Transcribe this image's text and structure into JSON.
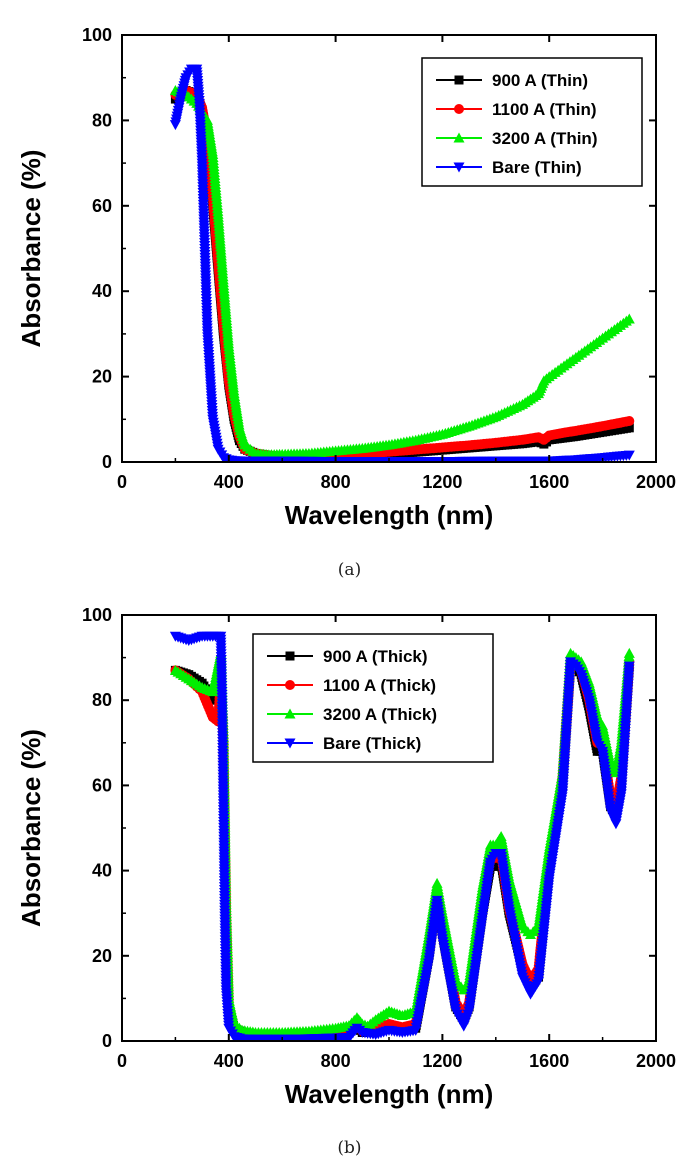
{
  "chart_data": [
    {
      "type": "line",
      "panel_label": "(a)",
      "xlabel": "Wavelength (nm)",
      "ylabel": "Absorbance (%)",
      "xlim": [
        0,
        2000
      ],
      "ylim": [
        0,
        100
      ],
      "xticks": [
        0,
        400,
        800,
        1200,
        1600,
        2000
      ],
      "yticks": [
        0,
        20,
        40,
        60,
        80,
        100
      ],
      "grid": false,
      "legend_position": "top-right",
      "series": [
        {
          "name": "900 A   (Thin)",
          "color": "#000000",
          "marker": "square",
          "x": [
            200,
            240,
            280,
            300,
            320,
            340,
            360,
            380,
            400,
            420,
            440,
            460,
            500,
            550,
            600,
            700,
            800,
            900,
            1000,
            1100,
            1200,
            1300,
            1400,
            1500,
            1560,
            1580,
            1600,
            1650,
            1700,
            1800,
            1900
          ],
          "y": [
            85,
            87,
            86,
            82,
            75,
            60,
            45,
            30,
            18,
            10,
            5,
            3,
            2,
            1.5,
            1.3,
            1.2,
            1.3,
            1.6,
            1.9,
            2.3,
            2.8,
            3.3,
            3.8,
            4.3,
            4.8,
            4.2,
            5.2,
            5.6,
            6.0,
            7.0,
            8.0
          ]
        },
        {
          "name": "1100 A (Thin)",
          "color": "#ff0000",
          "marker": "circle",
          "x": [
            200,
            240,
            280,
            300,
            320,
            340,
            360,
            380,
            400,
            420,
            440,
            460,
            500,
            550,
            600,
            700,
            800,
            900,
            1000,
            1100,
            1200,
            1300,
            1400,
            1500,
            1560,
            1580,
            1600,
            1650,
            1700,
            1800,
            1900
          ],
          "y": [
            86,
            87,
            86,
            83,
            76,
            62,
            47,
            32,
            19,
            11,
            6,
            3,
            2,
            1.5,
            1.3,
            1.3,
            1.5,
            1.9,
            2.4,
            2.9,
            3.4,
            3.9,
            4.5,
            5.2,
            5.8,
            5.2,
            6.2,
            6.8,
            7.3,
            8.4,
            9.6
          ]
        },
        {
          "name": "3200 A (Thin)",
          "color": "#00ee00",
          "marker": "triangle-up",
          "x": [
            200,
            240,
            280,
            300,
            320,
            340,
            360,
            380,
            400,
            420,
            440,
            460,
            500,
            550,
            600,
            700,
            800,
            900,
            1000,
            1100,
            1200,
            1300,
            1400,
            1500,
            1560,
            1580,
            1600,
            1700,
            1800,
            1900
          ],
          "y": [
            87,
            86,
            84,
            82,
            80,
            72,
            58,
            42,
            27,
            16,
            8,
            4,
            2,
            1.7,
            1.8,
            2,
            2.6,
            3.2,
            4.0,
            5.1,
            6.5,
            8.4,
            10.6,
            13.5,
            16.0,
            19,
            20,
            24.5,
            29,
            33.5
          ]
        },
        {
          "name": "Bare    (Thin)",
          "color": "#0000ff",
          "marker": "triangle-down",
          "x": [
            200,
            220,
            240,
            260,
            280,
            290,
            300,
            310,
            320,
            340,
            360,
            380,
            400,
            420,
            460,
            500,
            600,
            800,
            1000,
            1200,
            1400,
            1600,
            1700,
            1800,
            1900
          ],
          "y": [
            79,
            85,
            90,
            92,
            92,
            84,
            70,
            50,
            30,
            10,
            3,
            1,
            0.5,
            0.3,
            0.2,
            0.2,
            0.2,
            0.1,
            0.1,
            0.1,
            0.2,
            0.2,
            0.5,
            1.0,
            1.6
          ]
        }
      ]
    },
    {
      "type": "line",
      "panel_label": "(b)",
      "xlabel": "Wavelength (nm)",
      "ylabel": "Absorbance (%)",
      "xlim": [
        0,
        2000
      ],
      "ylim": [
        0,
        100
      ],
      "xticks": [
        0,
        400,
        800,
        1200,
        1600,
        2000
      ],
      "yticks": [
        0,
        20,
        40,
        60,
        80,
        100
      ],
      "grid": false,
      "legend_position": "top-center",
      "series": [
        {
          "name": "900 A   (Thick)",
          "color": "#000000",
          "marker": "square",
          "x": [
            200,
            250,
            300,
            340,
            360,
            370,
            380,
            390,
            400,
            420,
            450,
            500,
            600,
            700,
            800,
            850,
            880,
            900,
            950,
            1000,
            1050,
            1100,
            1150,
            1180,
            1200,
            1250,
            1280,
            1300,
            1350,
            1380,
            1400,
            1420,
            1450,
            1500,
            1530,
            1560,
            1600,
            1650,
            1680,
            1700,
            1720,
            1750,
            1780,
            1800,
            1830,
            1850,
            1870,
            1900
          ],
          "y": [
            87,
            86,
            84,
            80,
            85,
            88,
            70,
            30,
            8,
            3,
            2,
            1.5,
            1.5,
            1.8,
            2.2,
            2.5,
            3.5,
            2,
            2.5,
            3,
            2.5,
            3,
            20,
            34,
            25,
            8,
            5,
            8,
            30,
            41,
            41,
            42,
            30,
            17,
            13,
            15,
            40,
            60,
            88,
            88,
            86,
            78,
            68,
            68,
            55,
            53,
            60,
            88
          ]
        },
        {
          "name": "1100 A (Thick)",
          "color": "#ff0000",
          "marker": "circle",
          "x": [
            200,
            250,
            300,
            340,
            360,
            370,
            380,
            390,
            400,
            420,
            450,
            500,
            600,
            700,
            800,
            850,
            880,
            900,
            950,
            1000,
            1050,
            1100,
            1150,
            1180,
            1200,
            1250,
            1280,
            1300,
            1350,
            1380,
            1400,
            1420,
            1450,
            1500,
            1530,
            1560,
            1600,
            1650,
            1680,
            1700,
            1720,
            1750,
            1780,
            1800,
            1830,
            1850,
            1870,
            1900
          ],
          "y": [
            87,
            85,
            82,
            76,
            75,
            85,
            70,
            30,
            8,
            3,
            2,
            1.5,
            1.5,
            1.8,
            2.3,
            2.7,
            4,
            2.3,
            3,
            4,
            3.2,
            4,
            21,
            35,
            26,
            9,
            6,
            9,
            32,
            43,
            43,
            44,
            31,
            18,
            14,
            17,
            42,
            62,
            89,
            89,
            87,
            80,
            70,
            70,
            57,
            55,
            62,
            89
          ]
        },
        {
          "name": "3200 A (Thick)",
          "color": "#00ee00",
          "marker": "triangle-up",
          "x": [
            200,
            250,
            300,
            340,
            360,
            370,
            380,
            390,
            400,
            420,
            450,
            500,
            600,
            700,
            800,
            850,
            880,
            900,
            920,
            950,
            1000,
            1050,
            1100,
            1150,
            1180,
            1200,
            1250,
            1280,
            1300,
            1350,
            1380,
            1400,
            1420,
            1450,
            1500,
            1530,
            1560,
            1600,
            1650,
            1680,
            1700,
            1720,
            1750,
            1780,
            1800,
            1830,
            1850,
            1870,
            1900
          ],
          "y": [
            87,
            85,
            83,
            82,
            88,
            91,
            72,
            32,
            10,
            4,
            2.5,
            2,
            2,
            2.3,
            3,
            3.6,
            5.5,
            4,
            3.5,
            5,
            7,
            6,
            7,
            25,
            37,
            30,
            14,
            12,
            14,
            36,
            46,
            46,
            48,
            38,
            27,
            25,
            27,
            45,
            63,
            91,
            90,
            89,
            84,
            76,
            74,
            65,
            63,
            70,
            91
          ]
        },
        {
          "name": "Bare    (Thick)",
          "color": "#0000ff",
          "marker": "triangle-down",
          "x": [
            200,
            250,
            300,
            340,
            360,
            370,
            375,
            380,
            385,
            390,
            400,
            420,
            450,
            500,
            600,
            700,
            800,
            850,
            880,
            900,
            950,
            1000,
            1050,
            1100,
            1150,
            1180,
            1200,
            1250,
            1280,
            1300,
            1350,
            1380,
            1400,
            1420,
            1450,
            1500,
            1530,
            1560,
            1600,
            1650,
            1680,
            1700,
            1720,
            1750,
            1780,
            1800,
            1830,
            1850,
            1870,
            1900
          ],
          "y": [
            95,
            94,
            95,
            95,
            95,
            95,
            80,
            55,
            30,
            12,
            3,
            1,
            0.5,
            0.4,
            0.4,
            0.5,
            0.7,
            0.8,
            3,
            2,
            1.5,
            2.5,
            2,
            2.5,
            19,
            33,
            24,
            7,
            3.5,
            7,
            29,
            42,
            44,
            44,
            31,
            15,
            11,
            14,
            38,
            58,
            89,
            88,
            86,
            80,
            70,
            68,
            54,
            51,
            58,
            88
          ]
        }
      ]
    }
  ]
}
